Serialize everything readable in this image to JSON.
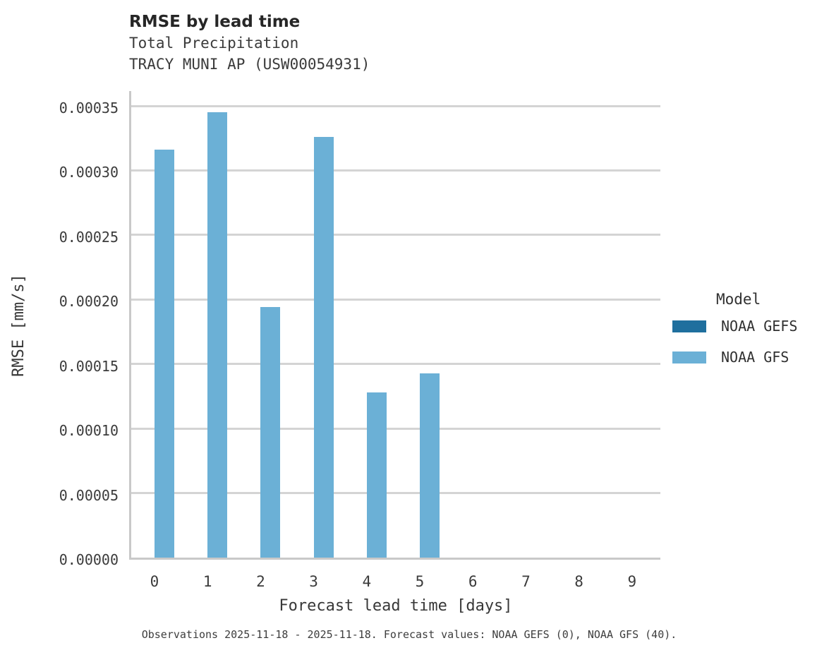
{
  "header": {
    "title": "RMSE by lead time",
    "subtitle_variable": "Total Precipitation",
    "subtitle_station": "TRACY MUNI AP (USW00054931)"
  },
  "legend": {
    "title": "Model",
    "entries": [
      {
        "label": "NOAA GEFS",
        "color": "#1f6f9e"
      },
      {
        "label": "NOAA GFS",
        "color": "#6bb0d6"
      }
    ]
  },
  "caption": "Observations 2025-11-18 - 2025-11-18. Forecast values: NOAA GEFS (0), NOAA GFS (40).",
  "colors": {
    "gefs_dark_blue": "#1f6f9e",
    "gfs_light_blue": "#6bb0d6",
    "gridline_gray": "#d4d4d4",
    "spine_gray": "#c9c9c9",
    "title_text": "#262626",
    "tick_text": "#3b3b3b"
  },
  "chart_data": {
    "type": "bar",
    "title": "RMSE by lead time",
    "subtitle": [
      "Total Precipitation",
      "TRACY MUNI AP (USW00054931)"
    ],
    "xlabel": "Forecast lead time [days]",
    "ylabel": "RMSE [mm/s]",
    "categories": [
      "0",
      "1",
      "2",
      "3",
      "4",
      "5",
      "6",
      "7",
      "8",
      "9"
    ],
    "series": [
      {
        "name": "NOAA GEFS",
        "color": "#1f6f9e",
        "values": [
          null,
          null,
          null,
          null,
          null,
          null,
          null,
          null,
          null,
          null
        ]
      },
      {
        "name": "NOAA GFS",
        "color": "#6bb0d6",
        "values": [
          0.000316,
          0.000345,
          0.000194,
          0.000326,
          0.000128,
          0.000143,
          null,
          null,
          null,
          null
        ]
      }
    ],
    "ylim": [
      0,
      0.00035
    ],
    "ytick_values": [
      0,
      5e-05,
      0.0001,
      0.00015,
      0.0002,
      0.00025,
      0.0003,
      0.00035
    ],
    "ytick_labels": [
      "0.00000",
      "0.00005",
      "0.00010",
      "0.00015",
      "0.00020",
      "0.00025",
      "0.00030",
      "0.00035"
    ],
    "grid": true,
    "legend_title": "Model",
    "legend_position": "right"
  }
}
